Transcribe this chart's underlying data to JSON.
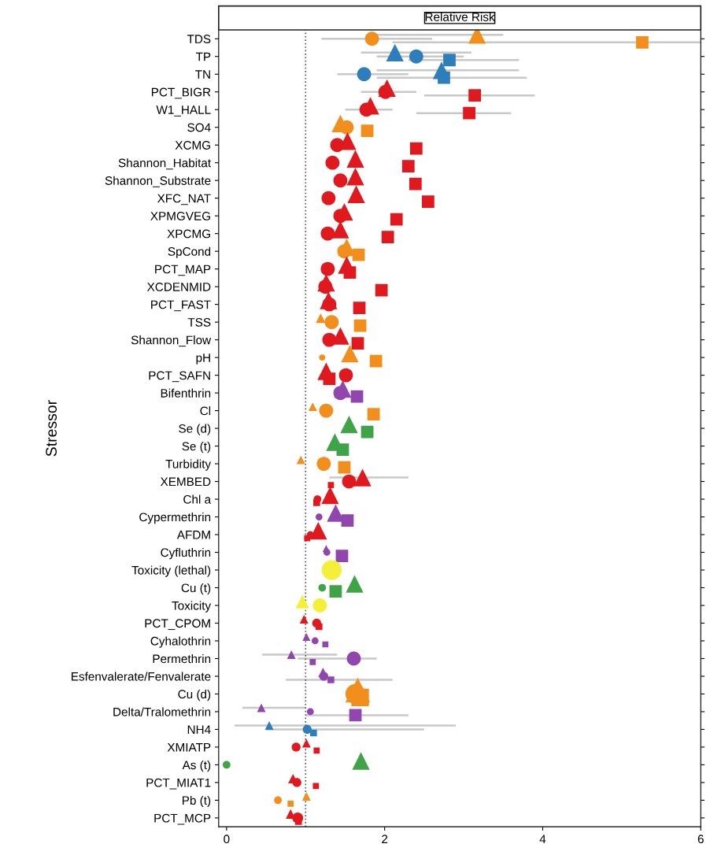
{
  "chart_data": {
    "type": "bubble",
    "title": "Relative Risk",
    "ylabel": "Stressor",
    "orientation": "horizontal",
    "grid": false,
    "legend": false,
    "categories": [
      "TDS",
      "TP",
      "TN",
      "PCT_BIGR",
      "W1_HALL",
      "SO4",
      "XCMG",
      "Shannon_Habitat",
      "Shannon_Substrate",
      "XFC_NAT",
      "XPMGVEG",
      "XPCMG",
      "SpCond",
      "PCT_MAP",
      "XCDENMID",
      "PCT_FAST",
      "TSS",
      "Shannon_Flow",
      "pH",
      "PCT_SAFN",
      "Bifenthrin",
      "Cl",
      "Se (d)",
      "Se (t)",
      "Turbidity",
      "XEMBED",
      "Chl a",
      "Cypermethrin",
      "AFDM",
      "Cyfluthrin",
      "Toxicity (lethal)",
      "Cu (t)",
      "Toxicity",
      "PCT_CPOM",
      "Cyhalothrin",
      "Permethrin",
      "Esfenvalerate/Fenvalerate",
      "Cu (d)",
      "Delta/Tralomethrin",
      "NH4",
      "XMIATP",
      "As (t)",
      "PCT_MIAT1",
      "Pb (t)",
      "PCT_MCP"
    ],
    "xlim": [
      -0.1,
      6
    ],
    "xticks": [
      0,
      2,
      4,
      6
    ],
    "ref_lines": [
      {
        "axis": "x",
        "value": 1,
        "color": "#555555",
        "line_style": "dotted"
      }
    ],
    "series": [
      {
        "marker": "circle",
        "values": [
          1.84,
          2.4,
          1.74,
          2.01,
          1.77,
          1.52,
          1.4,
          1.34,
          1.44,
          1.29,
          1.44,
          1.28,
          1.49,
          1.28,
          1.25,
          1.3,
          1.33,
          1.3,
          1.21,
          1.51,
          1.44,
          1.26,
          null,
          null,
          1.23,
          1.55,
          1.15,
          1.17,
          1.06,
          1.27,
          1.33,
          1.21,
          1.18,
          1.14,
          1.12,
          1.61,
          1.23,
          1.63,
          1.06,
          1.02,
          0.88,
          0.0,
          0.89,
          0.65,
          0.9
        ],
        "sizes": [
          0.5,
          0.5,
          0.5,
          0.5,
          0.5,
          0.5,
          0.5,
          0.5,
          0.5,
          0.5,
          0.5,
          0.5,
          0.5,
          0.5,
          0.5,
          0.5,
          0.5,
          0.5,
          0.1,
          0.5,
          0.5,
          0.5,
          null,
          null,
          0.5,
          0.5,
          0.15,
          0.12,
          0.12,
          0.12,
          1.0,
          0.15,
          0.5,
          0.2,
          0.12,
          0.5,
          0.2,
          1.0,
          0.12,
          0.2,
          0.2,
          0.15,
          0.2,
          0.15,
          0.3
        ],
        "errors": [
          [
            1.2,
            2.6
          ],
          [
            1.9,
            3.0
          ],
          [
            1.4,
            2.3
          ],
          [
            1.7,
            2.4
          ],
          [
            1.5,
            2.1
          ],
          null,
          null,
          null,
          null,
          null,
          null,
          null,
          null,
          null,
          null,
          null,
          null,
          null,
          null,
          null,
          null,
          null,
          null,
          null,
          null,
          null,
          null,
          null,
          null,
          null,
          null,
          null,
          null,
          null,
          null,
          [
            0.9,
            1.9
          ],
          null,
          null,
          null,
          [
            0.5,
            2.5
          ],
          null,
          null,
          null,
          null,
          null
        ],
        "colors": [
          "#f28e1c",
          "#2e7ebc",
          "#2e7ebc",
          "#e0191f",
          "#e0191f",
          "#f28e1c",
          "#e0191f",
          "#e0191f",
          "#e0191f",
          "#e0191f",
          "#e0191f",
          "#e0191f",
          "#f28e1c",
          "#e0191f",
          "#e0191f",
          "#e0191f",
          "#f28e1c",
          "#e0191f",
          "#f28e1c",
          "#e0191f",
          "#9146ad",
          "#f28e1c",
          "#3fa447",
          "#3fa447",
          "#f28e1c",
          "#e0191f",
          "#e0191f",
          "#9146ad",
          "#e0191f",
          "#9146ad",
          "#f4f03a",
          "#3fa447",
          "#f4f03a",
          "#e0191f",
          "#9146ad",
          "#9146ad",
          "#9146ad",
          "#f28e1c",
          "#9146ad",
          "#2e7ebc",
          "#e0191f",
          "#3fa447",
          "#e0191f",
          "#f28e1c",
          "#e0191f"
        ]
      },
      {
        "marker": "triangle",
        "values": [
          3.17,
          2.13,
          2.72,
          2.03,
          1.82,
          1.44,
          1.53,
          1.63,
          1.63,
          1.64,
          1.49,
          1.44,
          1.52,
          1.52,
          1.26,
          1.29,
          1.19,
          1.44,
          1.56,
          1.26,
          1.47,
          1.09,
          1.55,
          1.37,
          0.94,
          1.72,
          1.31,
          1.38,
          1.16,
          1.26,
          null,
          1.62,
          0.96,
          0.98,
          1.01,
          0.82,
          1.22,
          1.66,
          0.44,
          0.54,
          1.01,
          1.7,
          0.84,
          1.01,
          0.81
        ],
        "sizes": [
          0.5,
          0.5,
          0.5,
          0.5,
          0.5,
          0.5,
          0.5,
          0.5,
          0.5,
          0.5,
          0.5,
          0.5,
          0.5,
          0.5,
          0.5,
          0.5,
          0.15,
          0.5,
          0.5,
          0.5,
          0.5,
          0.12,
          0.5,
          0.5,
          0.12,
          0.5,
          0.5,
          0.5,
          0.5,
          0.08,
          null,
          0.5,
          0.3,
          0.12,
          0.1,
          0.12,
          0.15,
          1.0,
          0.12,
          0.12,
          0.12,
          0.5,
          0.15,
          0.12,
          0.15
        ],
        "errors": [
          [
            1.9,
            3.5
          ],
          [
            1.7,
            3.1
          ],
          [
            1.9,
            3.7
          ],
          null,
          null,
          null,
          null,
          null,
          null,
          null,
          null,
          null,
          null,
          null,
          null,
          null,
          null,
          null,
          null,
          null,
          null,
          null,
          null,
          null,
          null,
          [
            1.3,
            2.3
          ],
          null,
          null,
          null,
          null,
          null,
          null,
          null,
          null,
          null,
          [
            0.45,
            1.4
          ],
          null,
          null,
          [
            0.2,
            1.0
          ],
          [
            0.1,
            2.9
          ],
          null,
          null,
          null,
          null,
          null
        ],
        "colors": [
          "#f28e1c",
          "#2e7ebc",
          "#2e7ebc",
          "#e0191f",
          "#e0191f",
          "#f28e1c",
          "#e0191f",
          "#e0191f",
          "#e0191f",
          "#e0191f",
          "#e0191f",
          "#e0191f",
          "#f28e1c",
          "#e0191f",
          "#e0191f",
          "#e0191f",
          "#f28e1c",
          "#e0191f",
          "#f28e1c",
          "#e0191f",
          "#9146ad",
          "#f28e1c",
          "#3fa447",
          "#3fa447",
          "#f28e1c",
          "#e0191f",
          "#e0191f",
          "#9146ad",
          "#e0191f",
          "#9146ad",
          "#f4f03a",
          "#3fa447",
          "#f4f03a",
          "#e0191f",
          "#9146ad",
          "#9146ad",
          "#9146ad",
          "#f28e1c",
          "#9146ad",
          "#2e7ebc",
          "#e0191f",
          "#3fa447",
          "#e0191f",
          "#f28e1c",
          "#e0191f"
        ]
      },
      {
        "marker": "square",
        "values": [
          5.26,
          2.82,
          2.75,
          3.14,
          3.07,
          1.78,
          2.4,
          2.3,
          2.39,
          2.55,
          2.15,
          2.04,
          1.67,
          1.56,
          1.96,
          1.68,
          1.69,
          1.66,
          1.89,
          1.3,
          1.65,
          1.86,
          1.78,
          1.47,
          1.49,
          1.32,
          1.14,
          1.53,
          1.02,
          1.46,
          null,
          1.38,
          null,
          1.17,
          1.25,
          1.09,
          1.32,
          1.69,
          1.63,
          1.1,
          1.14,
          null,
          1.13,
          0.81,
          0.91
        ],
        "sizes": [
          0.5,
          0.5,
          0.5,
          0.5,
          0.5,
          0.5,
          0.5,
          0.5,
          0.5,
          0.5,
          0.5,
          0.5,
          0.5,
          0.5,
          0.5,
          0.5,
          0.5,
          0.5,
          0.5,
          0.5,
          0.5,
          0.5,
          0.5,
          0.5,
          0.5,
          0.12,
          0.15,
          0.5,
          0.12,
          0.5,
          null,
          0.5,
          null,
          0.15,
          0.12,
          0.12,
          0.15,
          1.0,
          0.5,
          0.15,
          0.12,
          null,
          0.12,
          0.12,
          0.15
        ],
        "errors": [
          [
            2.1,
            6.0
          ],
          [
            2.3,
            3.7
          ],
          [
            1.9,
            3.8
          ],
          [
            2.5,
            3.9
          ],
          [
            2.4,
            3.6
          ],
          null,
          null,
          null,
          null,
          null,
          null,
          null,
          null,
          null,
          null,
          null,
          null,
          null,
          null,
          null,
          null,
          null,
          null,
          null,
          null,
          null,
          null,
          null,
          null,
          null,
          null,
          null,
          null,
          null,
          null,
          null,
          [
            0.75,
            2.1
          ],
          null,
          [
            1.0,
            2.3
          ],
          null,
          null,
          null,
          null,
          null,
          null
        ],
        "colors": [
          "#f28e1c",
          "#2e7ebc",
          "#2e7ebc",
          "#e0191f",
          "#e0191f",
          "#f28e1c",
          "#e0191f",
          "#e0191f",
          "#e0191f",
          "#e0191f",
          "#e0191f",
          "#e0191f",
          "#f28e1c",
          "#e0191f",
          "#e0191f",
          "#e0191f",
          "#f28e1c",
          "#e0191f",
          "#f28e1c",
          "#e0191f",
          "#9146ad",
          "#f28e1c",
          "#3fa447",
          "#3fa447",
          "#f28e1c",
          "#e0191f",
          "#e0191f",
          "#9146ad",
          "#e0191f",
          "#9146ad",
          "#f4f03a",
          "#3fa447",
          "#f4f03a",
          "#e0191f",
          "#9146ad",
          "#9146ad",
          "#9146ad",
          "#f28e1c",
          "#9146ad",
          "#2e7ebc",
          "#e0191f",
          "#3fa447",
          "#e0191f",
          "#f28e1c",
          "#e0191f"
        ]
      }
    ]
  }
}
